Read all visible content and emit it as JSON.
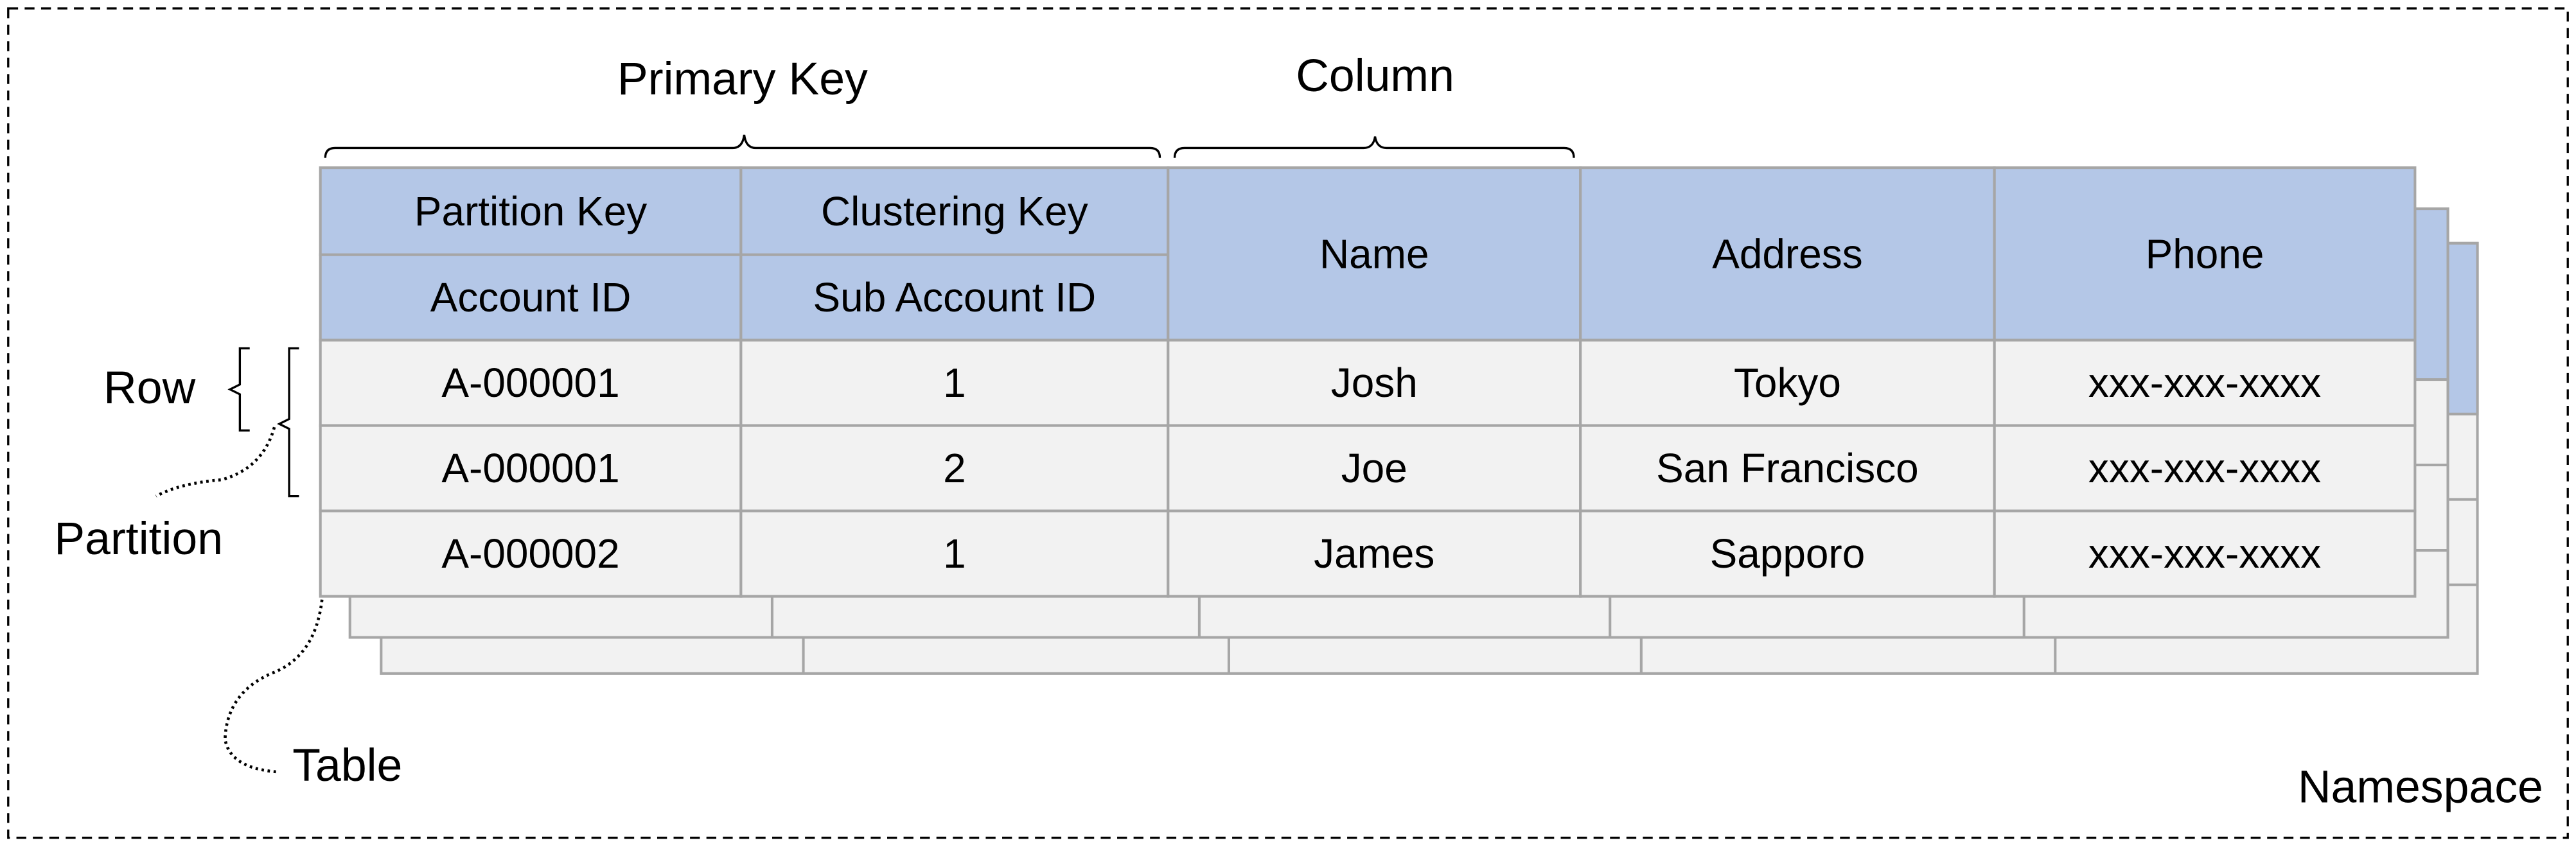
{
  "labels": {
    "primary_key": "Primary Key",
    "column": "Column",
    "row": "Row",
    "partition": "Partition",
    "table": "Table",
    "namespace": "Namespace"
  },
  "table": {
    "header_top": [
      "Partition Key",
      "Clustering Key"
    ],
    "header_bottom": [
      "Account ID",
      "Sub Account ID"
    ],
    "columns": [
      "Name",
      "Address",
      "Phone"
    ],
    "rows": [
      [
        "A-000001",
        "1",
        "Josh",
        "Tokyo",
        "xxx-xxx-xxxx"
      ],
      [
        "A-000001",
        "2",
        "Joe",
        "San Francisco",
        "xxx-xxx-xxxx"
      ],
      [
        "A-000002",
        "1",
        "James",
        "Sapporo",
        "xxx-xxx-xxxx"
      ]
    ]
  },
  "colors": {
    "header_fill": "#b4c7e7",
    "cell_fill": "#f2f2f2",
    "grid_line": "#a6a6a6"
  }
}
